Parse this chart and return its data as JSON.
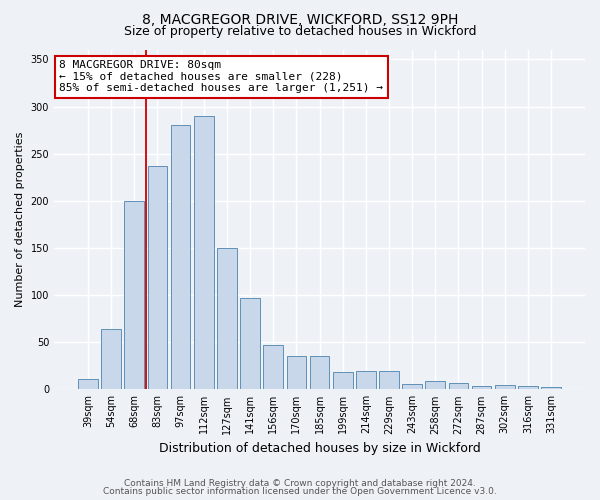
{
  "title1": "8, MACGREGOR DRIVE, WICKFORD, SS12 9PH",
  "title2": "Size of property relative to detached houses in Wickford",
  "xlabel": "Distribution of detached houses by size in Wickford",
  "ylabel": "Number of detached properties",
  "categories": [
    "39sqm",
    "54sqm",
    "68sqm",
    "83sqm",
    "97sqm",
    "112sqm",
    "127sqm",
    "141sqm",
    "156sqm",
    "170sqm",
    "185sqm",
    "199sqm",
    "214sqm",
    "229sqm",
    "243sqm",
    "258sqm",
    "272sqm",
    "287sqm",
    "302sqm",
    "316sqm",
    "331sqm"
  ],
  "values": [
    11,
    64,
    200,
    237,
    280,
    290,
    150,
    97,
    47,
    35,
    35,
    18,
    19,
    19,
    6,
    9,
    7,
    4,
    5,
    4,
    2
  ],
  "bar_color": "#c8d8ea",
  "bar_edge_color": "#6090b8",
  "vline_color": "#cc0000",
  "annotation_line1": "8 MACGREGOR DRIVE: 80sqm",
  "annotation_line2": "← 15% of detached houses are smaller (228)",
  "annotation_line3": "85% of semi-detached houses are larger (1,251) →",
  "annotation_box_color": "white",
  "annotation_box_edge": "#cc0000",
  "ylim": [
    0,
    360
  ],
  "yticks": [
    0,
    50,
    100,
    150,
    200,
    250,
    300,
    350
  ],
  "footer1": "Contains HM Land Registry data © Crown copyright and database right 2024.",
  "footer2": "Contains public sector information licensed under the Open Government Licence v3.0.",
  "bg_color": "#eef2f7",
  "plot_bg_color": "#eef2f7",
  "grid_color": "#ffffff",
  "title1_fontsize": 10,
  "title2_fontsize": 9,
  "ylabel_fontsize": 8,
  "xlabel_fontsize": 9,
  "tick_fontsize": 7,
  "annot_fontsize": 8,
  "footer_fontsize": 6.5
}
